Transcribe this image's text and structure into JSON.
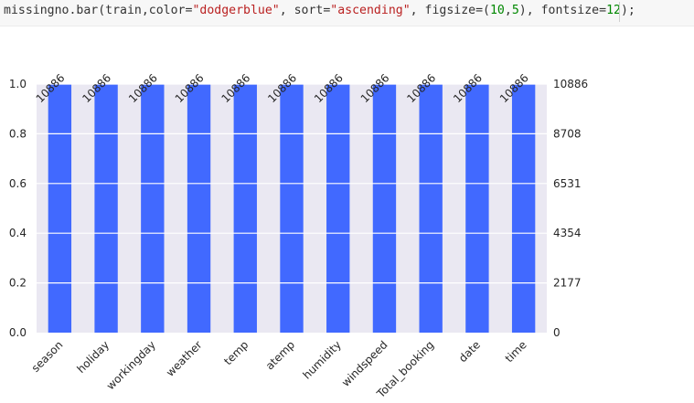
{
  "code_cell": {
    "parts": [
      {
        "text": "missingno.bar(train,color=",
        "cls": ""
      },
      {
        "text": "\"dodgerblue\"",
        "cls": "str"
      },
      {
        "text": ", sort=",
        "cls": ""
      },
      {
        "text": "\"ascending\"",
        "cls": "str"
      },
      {
        "text": ", figsize=(",
        "cls": ""
      },
      {
        "text": "10",
        "cls": "num"
      },
      {
        "text": ",",
        "cls": ""
      },
      {
        "text": "5",
        "cls": "num"
      },
      {
        "text": "), fontsize=",
        "cls": ""
      },
      {
        "text": "12",
        "cls": "num"
      },
      {
        "text": ");",
        "cls": ""
      }
    ]
  },
  "chart_data": {
    "type": "bar",
    "categories": [
      "season",
      "holiday",
      "workingday",
      "weather",
      "temp",
      "atemp",
      "humidity",
      "windspeed",
      "Total_booking",
      "date",
      "time"
    ],
    "values": [
      1.0,
      1.0,
      1.0,
      1.0,
      1.0,
      1.0,
      1.0,
      1.0,
      1.0,
      1.0,
      1.0
    ],
    "counts": [
      "10886",
      "10886",
      "10886",
      "10886",
      "10886",
      "10886",
      "10886",
      "10886",
      "10886",
      "10886",
      "10886"
    ],
    "ylim": [
      0,
      1.0
    ],
    "left_ticks": [
      "0.0",
      "0.2",
      "0.4",
      "0.6",
      "0.8",
      "1.0"
    ],
    "right_ticks": [
      "0",
      "2177",
      "4354",
      "6531",
      "8708",
      "10886"
    ],
    "bar_color": "#4169ff",
    "plot_background": "#eae8f2",
    "grid": true,
    "title": "",
    "xlabel": "",
    "ylabel": ""
  }
}
